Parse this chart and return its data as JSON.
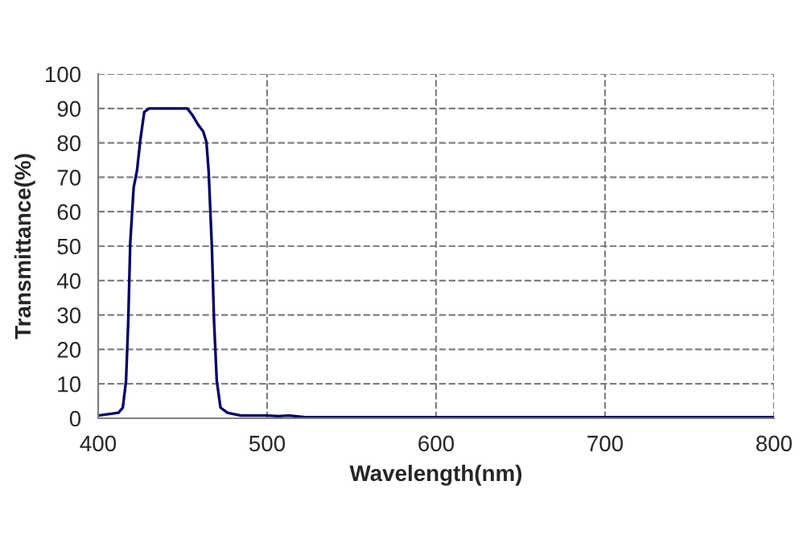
{
  "chart_data": {
    "type": "line",
    "xlabel": "Wavelength(nm)",
    "ylabel": "Transmittance(%)",
    "series": [
      {
        "color": "#000066",
        "x": [
          400,
          412,
          414.6,
          416.5,
          417.8,
          419,
          421,
          423,
          425,
          427.3,
          430.2,
          433.7,
          436.8,
          446,
          452.7,
          455.9,
          459,
          462.2,
          464.1,
          465.4,
          467.3,
          468.6,
          470.2,
          472.4,
          476.5,
          484.4,
          500,
          506.7,
          513,
          522.5,
          595.6,
          800
        ],
        "values": [
          0.8,
          1.6,
          3.1,
          10.9,
          28,
          51,
          67,
          72,
          81,
          89,
          90,
          90,
          90,
          90,
          90,
          88,
          85.4,
          83.3,
          80.2,
          71.7,
          49.8,
          28,
          10.9,
          3.1,
          1.6,
          0.8,
          0.8,
          0.6,
          0.8,
          0.3,
          0.3,
          0.3
        ]
      }
    ],
    "xlim": [
      400,
      800
    ],
    "xticks": [
      400,
      500,
      600,
      700,
      800
    ],
    "ylim": [
      0,
      100
    ],
    "yticks": [
      0,
      10,
      20,
      30,
      40,
      50,
      60,
      70,
      80,
      90,
      100
    ],
    "grid": true,
    "marker": "none",
    "line_style": "solid"
  }
}
